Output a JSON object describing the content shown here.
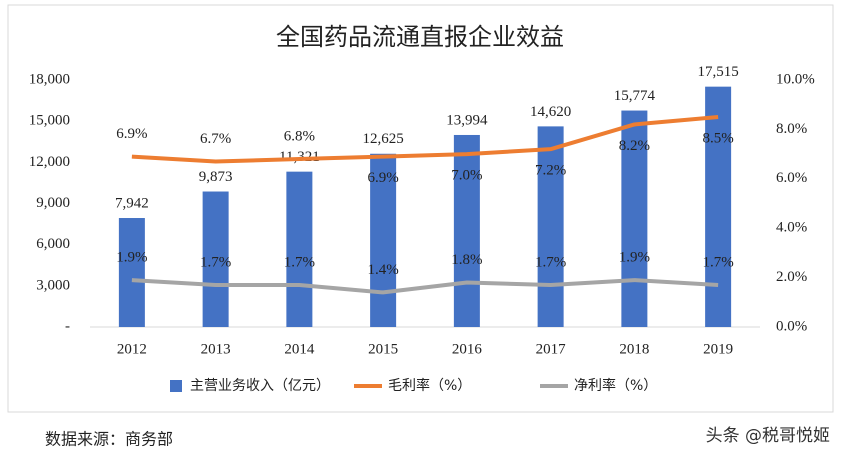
{
  "chart_data": {
    "type": "bar",
    "title": "全国药品流通直报企业效益",
    "categories": [
      "2012",
      "2013",
      "2014",
      "2015",
      "2016",
      "2017",
      "2018",
      "2019"
    ],
    "series": [
      {
        "name": "主营业务收入（亿元）",
        "type": "bar",
        "color": "#4472c4",
        "values": [
          7942,
          9873,
          11321,
          12625,
          13994,
          14620,
          15774,
          17515
        ],
        "value_labels": [
          "7,942",
          "9,873",
          "11,321",
          "12,625",
          "13,994",
          "14,620",
          "15,774",
          "17,515"
        ]
      },
      {
        "name": "毛利率（%）",
        "type": "line",
        "axis": "y2",
        "color": "#ed7d31",
        "values": [
          6.9,
          6.7,
          6.8,
          6.9,
          7.0,
          7.2,
          8.2,
          8.5
        ],
        "value_labels": [
          "6.9%",
          "6.7%",
          "6.8%",
          "6.9%",
          "7.0%",
          "7.2%",
          "8.2%",
          "8.5%"
        ]
      },
      {
        "name": "净利率（%）",
        "type": "line",
        "axis": "y2",
        "color": "#a5a5a5",
        "values": [
          1.9,
          1.7,
          1.7,
          1.4,
          1.8,
          1.7,
          1.9,
          1.7
        ],
        "value_labels": [
          "1.9%",
          "1.7%",
          "1.7%",
          "1.4%",
          "1.8%",
          "1.7%",
          "1.9%",
          "1.7%"
        ]
      }
    ],
    "ylim": [
      0,
      18000
    ],
    "yticks": [
      {
        "value": 0,
        "label": "-"
      },
      {
        "value": 3000,
        "label": "3,000"
      },
      {
        "value": 6000,
        "label": "6,000"
      },
      {
        "value": 9000,
        "label": "9,000"
      },
      {
        "value": 12000,
        "label": "12,000"
      },
      {
        "value": 15000,
        "label": "15,000"
      },
      {
        "value": 18000,
        "label": "18,000"
      }
    ],
    "y2lim": [
      0,
      10
    ],
    "y2ticks": [
      {
        "value": 0,
        "label": "0.0%"
      },
      {
        "value": 2,
        "label": "2.0%"
      },
      {
        "value": 4,
        "label": "4.0%"
      },
      {
        "value": 6,
        "label": "6.0%"
      },
      {
        "value": 8,
        "label": "8.0%"
      },
      {
        "value": 10,
        "label": "10.0%"
      }
    ],
    "grid": false,
    "legend": "bottom"
  },
  "footer": {
    "source": "数据来源：商务部",
    "watermark": "头条 @税哥悦姬"
  }
}
